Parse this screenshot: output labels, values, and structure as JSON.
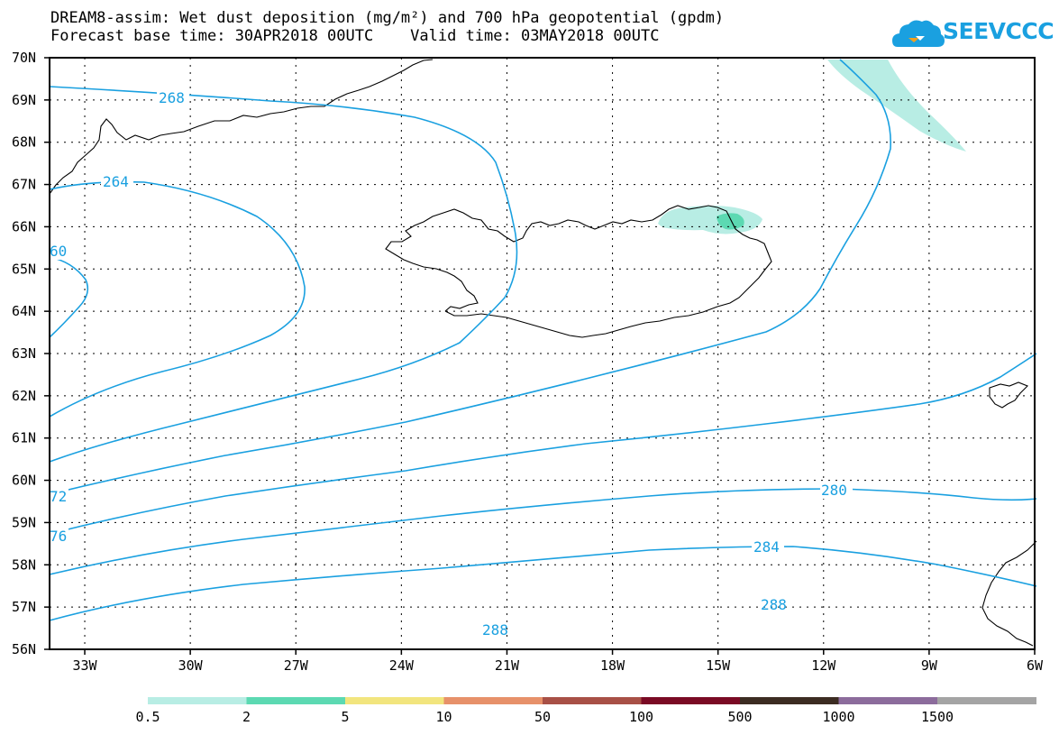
{
  "title": {
    "line1": "DREAM8-assim: Wet dust deposition (mg/m²) and 700 hPa geopotential (gpdm)",
    "line2": "Forecast base time: 30APR2018 00UTC    Valid time: 03MAY2018 00UTC"
  },
  "logo": {
    "text": "SEEVCCC",
    "color": "#1aa0e0"
  },
  "map": {
    "lat_labels": [
      "70N",
      "69N",
      "68N",
      "67N",
      "66N",
      "65N",
      "64N",
      "63N",
      "62N",
      "61N",
      "60N",
      "59N",
      "58N",
      "57N",
      "56N"
    ],
    "lon_labels": [
      "33W",
      "30W",
      "27W",
      "24W",
      "21W",
      "18W",
      "15W",
      "12W",
      "9W",
      "6W"
    ],
    "lat_range": [
      56,
      70
    ],
    "lon_range": [
      -34.0,
      -6.0
    ],
    "grid": true,
    "contour_color": "#1aa0e0",
    "contour_labels": [
      "268",
      "264",
      "60",
      "72",
      "76",
      "280",
      "284",
      "288",
      "288"
    ]
  },
  "legend": {
    "labels": [
      "0.5",
      "2",
      "5",
      "10",
      "50",
      "100",
      "500",
      "1000",
      "1500"
    ],
    "colors": [
      "#b8ede4",
      "#5cd9b2",
      "#f2e57e",
      "#e7916a",
      "#a85046",
      "#7a0a24",
      "#3c2c22",
      "#8c6c9c",
      "#a4a4a4"
    ]
  }
}
